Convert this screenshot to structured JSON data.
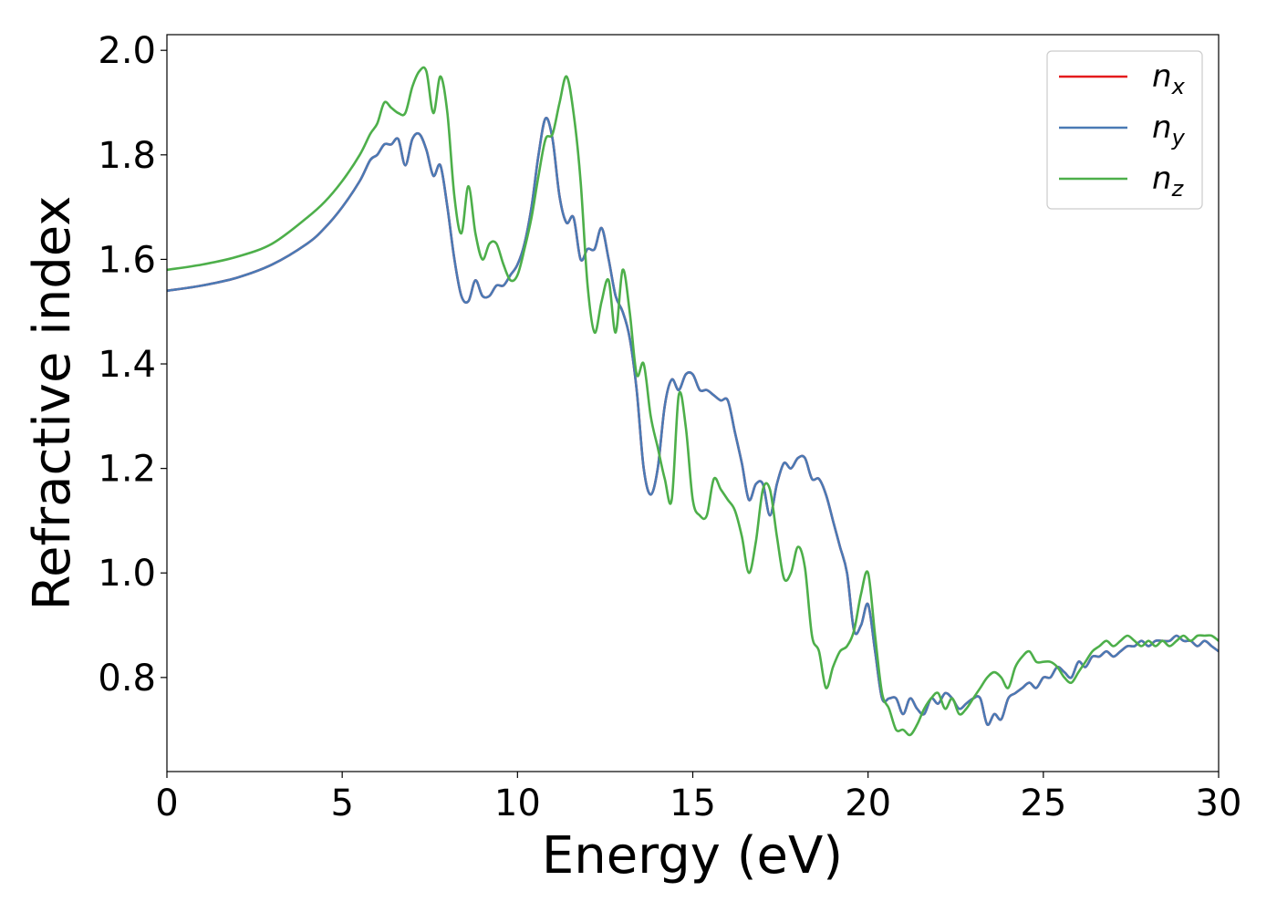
{
  "chart_data": {
    "type": "line",
    "xlabel": "Energy (eV)",
    "ylabel": "Refractive index",
    "xlim": [
      0,
      30
    ],
    "ylim": [
      0.62,
      2.03
    ],
    "xticks": [
      0,
      5,
      10,
      15,
      20,
      25,
      30
    ],
    "xtick_labels": [
      "0",
      "5",
      "10",
      "15",
      "20",
      "25",
      "30"
    ],
    "yticks": [
      0.8,
      1.0,
      1.2,
      1.4,
      1.6,
      1.8,
      2.0
    ],
    "ytick_labels": [
      "0.8",
      "1.0",
      "1.2",
      "1.4",
      "1.6",
      "1.8",
      "2.0"
    ],
    "grid": false,
    "legend_position": "top-right",
    "series": [
      {
        "name": "n_x",
        "label_base": "n",
        "label_sub": "x",
        "color": "#e41a1c",
        "x": [
          0,
          1,
          2,
          3,
          4,
          4.5,
          5,
          5.5,
          5.8,
          6.0,
          6.2,
          6.4,
          6.6,
          6.8,
          7.0,
          7.2,
          7.4,
          7.6,
          7.8,
          8.0,
          8.2,
          8.4,
          8.6,
          8.8,
          9.0,
          9.2,
          9.4,
          9.6,
          9.8,
          10.0,
          10.2,
          10.4,
          10.6,
          10.8,
          11.0,
          11.2,
          11.4,
          11.6,
          11.8,
          12.0,
          12.2,
          12.4,
          12.6,
          12.8,
          13.0,
          13.2,
          13.4,
          13.6,
          13.8,
          14.0,
          14.2,
          14.4,
          14.6,
          14.8,
          15.0,
          15.2,
          15.4,
          15.6,
          15.8,
          16.0,
          16.2,
          16.4,
          16.6,
          16.8,
          17.0,
          17.2,
          17.4,
          17.6,
          17.8,
          18.0,
          18.2,
          18.4,
          18.6,
          18.8,
          19.0,
          19.2,
          19.4,
          19.6,
          19.8,
          20.0,
          20.2,
          20.4,
          20.6,
          20.8,
          21.0,
          21.2,
          21.4,
          21.6,
          21.8,
          22.0,
          22.2,
          22.4,
          22.6,
          22.8,
          23.0,
          23.2,
          23.4,
          23.6,
          23.8,
          24.0,
          24.2,
          24.4,
          24.6,
          24.8,
          25.0,
          25.2,
          25.4,
          25.6,
          25.8,
          26.0,
          26.2,
          26.4,
          26.6,
          26.8,
          27.0,
          27.2,
          27.4,
          27.6,
          27.8,
          28.0,
          28.2,
          28.4,
          28.6,
          28.8,
          29.0,
          29.2,
          29.4,
          29.6,
          29.8,
          30.0
        ],
        "y": [
          1.54,
          1.55,
          1.565,
          1.59,
          1.63,
          1.66,
          1.7,
          1.75,
          1.79,
          1.8,
          1.82,
          1.82,
          1.83,
          1.78,
          1.83,
          1.84,
          1.81,
          1.76,
          1.78,
          1.7,
          1.6,
          1.53,
          1.52,
          1.56,
          1.53,
          1.53,
          1.55,
          1.55,
          1.57,
          1.59,
          1.63,
          1.7,
          1.8,
          1.87,
          1.83,
          1.72,
          1.67,
          1.68,
          1.6,
          1.62,
          1.62,
          1.66,
          1.6,
          1.53,
          1.5,
          1.45,
          1.35,
          1.2,
          1.15,
          1.2,
          1.32,
          1.37,
          1.35,
          1.38,
          1.38,
          1.35,
          1.35,
          1.34,
          1.33,
          1.33,
          1.27,
          1.21,
          1.14,
          1.17,
          1.17,
          1.11,
          1.17,
          1.21,
          1.2,
          1.22,
          1.22,
          1.18,
          1.18,
          1.15,
          1.1,
          1.05,
          1.0,
          0.89,
          0.9,
          0.94,
          0.85,
          0.76,
          0.76,
          0.76,
          0.73,
          0.76,
          0.74,
          0.73,
          0.76,
          0.75,
          0.77,
          0.76,
          0.74,
          0.75,
          0.76,
          0.76,
          0.71,
          0.73,
          0.72,
          0.76,
          0.77,
          0.78,
          0.79,
          0.78,
          0.8,
          0.8,
          0.82,
          0.81,
          0.8,
          0.83,
          0.82,
          0.84,
          0.84,
          0.85,
          0.84,
          0.85,
          0.86,
          0.86,
          0.87,
          0.86,
          0.87,
          0.87,
          0.87,
          0.88,
          0.87,
          0.87,
          0.86,
          0.87,
          0.86,
          0.85
        ]
      },
      {
        "name": "n_y",
        "label_base": "n",
        "label_sub": "y",
        "color": "#4a7ab5",
        "x": [
          0,
          1,
          2,
          3,
          4,
          4.5,
          5,
          5.5,
          5.8,
          6.0,
          6.2,
          6.4,
          6.6,
          6.8,
          7.0,
          7.2,
          7.4,
          7.6,
          7.8,
          8.0,
          8.2,
          8.4,
          8.6,
          8.8,
          9.0,
          9.2,
          9.4,
          9.6,
          9.8,
          10.0,
          10.2,
          10.4,
          10.6,
          10.8,
          11.0,
          11.2,
          11.4,
          11.6,
          11.8,
          12.0,
          12.2,
          12.4,
          12.6,
          12.8,
          13.0,
          13.2,
          13.4,
          13.6,
          13.8,
          14.0,
          14.2,
          14.4,
          14.6,
          14.8,
          15.0,
          15.2,
          15.4,
          15.6,
          15.8,
          16.0,
          16.2,
          16.4,
          16.6,
          16.8,
          17.0,
          17.2,
          17.4,
          17.6,
          17.8,
          18.0,
          18.2,
          18.4,
          18.6,
          18.8,
          19.0,
          19.2,
          19.4,
          19.6,
          19.8,
          20.0,
          20.2,
          20.4,
          20.6,
          20.8,
          21.0,
          21.2,
          21.4,
          21.6,
          21.8,
          22.0,
          22.2,
          22.4,
          22.6,
          22.8,
          23.0,
          23.2,
          23.4,
          23.6,
          23.8,
          24.0,
          24.2,
          24.4,
          24.6,
          24.8,
          25.0,
          25.2,
          25.4,
          25.6,
          25.8,
          26.0,
          26.2,
          26.4,
          26.6,
          26.8,
          27.0,
          27.2,
          27.4,
          27.6,
          27.8,
          28.0,
          28.2,
          28.4,
          28.6,
          28.8,
          29.0,
          29.2,
          29.4,
          29.6,
          29.8,
          30.0
        ],
        "y": [
          1.54,
          1.55,
          1.565,
          1.59,
          1.63,
          1.66,
          1.7,
          1.75,
          1.79,
          1.8,
          1.82,
          1.82,
          1.83,
          1.78,
          1.83,
          1.84,
          1.81,
          1.76,
          1.78,
          1.7,
          1.6,
          1.53,
          1.52,
          1.56,
          1.53,
          1.53,
          1.55,
          1.55,
          1.57,
          1.59,
          1.63,
          1.7,
          1.8,
          1.87,
          1.83,
          1.72,
          1.67,
          1.68,
          1.6,
          1.62,
          1.62,
          1.66,
          1.6,
          1.53,
          1.5,
          1.45,
          1.35,
          1.2,
          1.15,
          1.2,
          1.32,
          1.37,
          1.35,
          1.38,
          1.38,
          1.35,
          1.35,
          1.34,
          1.33,
          1.33,
          1.27,
          1.21,
          1.14,
          1.17,
          1.17,
          1.11,
          1.17,
          1.21,
          1.2,
          1.22,
          1.22,
          1.18,
          1.18,
          1.15,
          1.1,
          1.05,
          1.0,
          0.89,
          0.9,
          0.94,
          0.85,
          0.76,
          0.76,
          0.76,
          0.73,
          0.76,
          0.74,
          0.73,
          0.76,
          0.75,
          0.77,
          0.76,
          0.74,
          0.75,
          0.76,
          0.76,
          0.71,
          0.73,
          0.72,
          0.76,
          0.77,
          0.78,
          0.79,
          0.78,
          0.8,
          0.8,
          0.82,
          0.81,
          0.8,
          0.83,
          0.82,
          0.84,
          0.84,
          0.85,
          0.84,
          0.85,
          0.86,
          0.86,
          0.87,
          0.86,
          0.87,
          0.87,
          0.87,
          0.88,
          0.87,
          0.87,
          0.86,
          0.87,
          0.86,
          0.85
        ]
      },
      {
        "name": "n_z",
        "label_base": "n",
        "label_sub": "z",
        "color": "#4daf4a",
        "x": [
          0,
          1,
          2,
          3,
          4,
          4.5,
          5,
          5.5,
          5.8,
          6.0,
          6.2,
          6.4,
          6.6,
          6.8,
          7.0,
          7.2,
          7.4,
          7.6,
          7.8,
          8.0,
          8.2,
          8.4,
          8.6,
          8.8,
          9.0,
          9.2,
          9.4,
          9.6,
          9.8,
          10.0,
          10.2,
          10.4,
          10.6,
          10.8,
          11.0,
          11.2,
          11.4,
          11.6,
          11.8,
          12.0,
          12.2,
          12.4,
          12.6,
          12.8,
          13.0,
          13.2,
          13.4,
          13.6,
          13.8,
          14.0,
          14.2,
          14.4,
          14.6,
          14.8,
          15.0,
          15.2,
          15.4,
          15.6,
          15.8,
          16.0,
          16.2,
          16.4,
          16.6,
          16.8,
          17.0,
          17.2,
          17.4,
          17.6,
          17.8,
          18.0,
          18.2,
          18.4,
          18.6,
          18.8,
          19.0,
          19.2,
          19.4,
          19.6,
          19.8,
          20.0,
          20.2,
          20.4,
          20.6,
          20.8,
          21.0,
          21.2,
          21.4,
          21.6,
          21.8,
          22.0,
          22.2,
          22.4,
          22.6,
          22.8,
          23.0,
          23.2,
          23.4,
          23.6,
          23.8,
          24.0,
          24.2,
          24.4,
          24.6,
          24.8,
          25.0,
          25.2,
          25.4,
          25.6,
          25.8,
          26.0,
          26.2,
          26.4,
          26.6,
          26.8,
          27.0,
          27.2,
          27.4,
          27.6,
          27.8,
          28.0,
          28.2,
          28.4,
          28.6,
          28.8,
          29.0,
          29.2,
          29.4,
          29.6,
          29.8,
          30.0
        ],
        "y": [
          1.58,
          1.59,
          1.605,
          1.63,
          1.68,
          1.71,
          1.75,
          1.8,
          1.84,
          1.86,
          1.9,
          1.89,
          1.88,
          1.88,
          1.93,
          1.96,
          1.96,
          1.88,
          1.95,
          1.88,
          1.72,
          1.65,
          1.74,
          1.65,
          1.6,
          1.63,
          1.63,
          1.59,
          1.56,
          1.57,
          1.62,
          1.68,
          1.76,
          1.83,
          1.84,
          1.9,
          1.95,
          1.88,
          1.75,
          1.55,
          1.46,
          1.52,
          1.56,
          1.46,
          1.58,
          1.5,
          1.38,
          1.4,
          1.3,
          1.24,
          1.18,
          1.14,
          1.34,
          1.28,
          1.14,
          1.11,
          1.11,
          1.18,
          1.16,
          1.14,
          1.12,
          1.07,
          1.0,
          1.06,
          1.16,
          1.16,
          1.07,
          0.99,
          1.0,
          1.05,
          1.01,
          0.88,
          0.85,
          0.78,
          0.82,
          0.85,
          0.86,
          0.89,
          0.96,
          1.0,
          0.88,
          0.77,
          0.74,
          0.7,
          0.7,
          0.69,
          0.71,
          0.74,
          0.76,
          0.77,
          0.74,
          0.76,
          0.73,
          0.74,
          0.76,
          0.78,
          0.8,
          0.81,
          0.8,
          0.78,
          0.82,
          0.84,
          0.85,
          0.83,
          0.83,
          0.83,
          0.82,
          0.8,
          0.79,
          0.81,
          0.83,
          0.85,
          0.86,
          0.87,
          0.86,
          0.87,
          0.88,
          0.87,
          0.86,
          0.87,
          0.86,
          0.87,
          0.86,
          0.87,
          0.88,
          0.87,
          0.88,
          0.88,
          0.88,
          0.87
        ]
      }
    ]
  }
}
